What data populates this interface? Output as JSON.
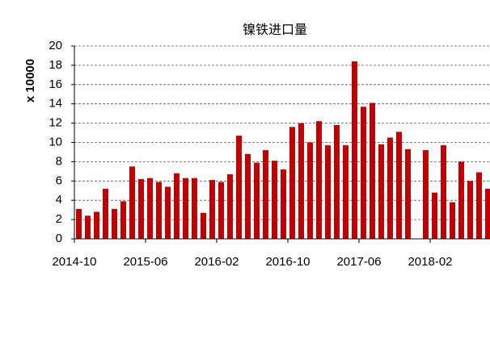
{
  "chart_data": {
    "type": "bar",
    "title": "镍铁进口量",
    "y_label": "x 10000",
    "categories": [
      "2014-10",
      null,
      null,
      null,
      null,
      null,
      null,
      null,
      "2015-06",
      null,
      null,
      null,
      null,
      null,
      null,
      null,
      "2016-02",
      null,
      null,
      null,
      null,
      null,
      null,
      null,
      "2016-10",
      null,
      null,
      null,
      null,
      null,
      null,
      null,
      "2017-06",
      null,
      null,
      null,
      null,
      null,
      null,
      null,
      "2018-02",
      null,
      null,
      null,
      null,
      null,
      null
    ],
    "values": [
      3.1,
      2.4,
      2.8,
      5.2,
      3.1,
      3.9,
      7.5,
      6.2,
      6.3,
      5.9,
      5.4,
      6.8,
      6.3,
      6.3,
      2.7,
      6.1,
      5.9,
      6.7,
      10.7,
      8.8,
      7.9,
      9.2,
      8.1,
      7.2,
      11.6,
      12.0,
      10.0,
      12.2,
      9.7,
      11.8,
      9.7,
      18.4,
      13.7,
      14.1,
      9.8,
      10.5,
      11.1,
      9.3,
      null,
      9.2,
      4.8,
      9.7,
      3.8,
      8.0,
      6.0,
      6.9,
      5.2
    ],
    "color": "#c00000",
    "ylim": [
      0,
      20
    ],
    "yticks": [
      0,
      2,
      4,
      6,
      8,
      10,
      12,
      14,
      16,
      18,
      20
    ],
    "grid": true
  }
}
